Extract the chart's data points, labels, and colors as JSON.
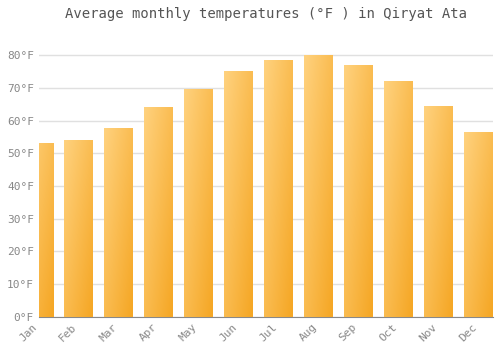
{
  "title": "Average monthly temperatures (°F ) in Qiryat Ata",
  "months": [
    "Jan",
    "Feb",
    "Mar",
    "Apr",
    "May",
    "Jun",
    "Jul",
    "Aug",
    "Sep",
    "Oct",
    "Nov",
    "Dec"
  ],
  "values": [
    53,
    54,
    57.5,
    64,
    69.5,
    75,
    78.5,
    80,
    77,
    72,
    64.5,
    56.5
  ],
  "bar_color_dark": "#F5A623",
  "bar_color_light": "#FFD27F",
  "ylim": [
    0,
    88
  ],
  "yticks": [
    0,
    10,
    20,
    30,
    40,
    50,
    60,
    70,
    80
  ],
  "ytick_labels": [
    "0°F",
    "10°F",
    "20°F",
    "30°F",
    "40°F",
    "50°F",
    "60°F",
    "70°F",
    "80°F"
  ],
  "background_color": "#FFFFFF",
  "grid_color": "#E0E0E0",
  "title_fontsize": 10,
  "tick_fontsize": 8,
  "tick_color": "#888888"
}
